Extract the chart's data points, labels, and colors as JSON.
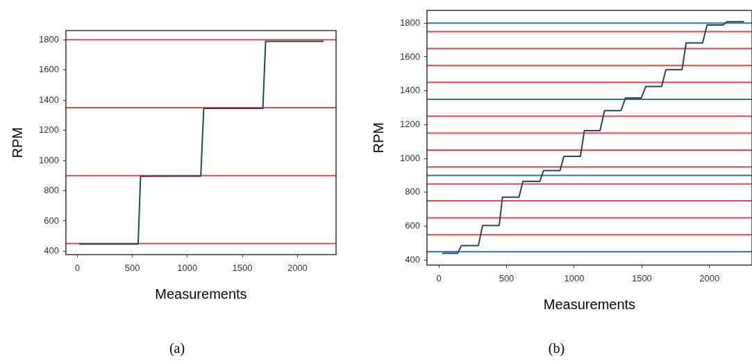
{
  "chart_data": [
    {
      "type": "line",
      "xlabel": "Measurements",
      "ylabel": "RPM",
      "xlim": [
        -103,
        2351
      ],
      "ylim": [
        377,
        1861
      ],
      "xticks": [
        0,
        500,
        1000,
        1500,
        2000
      ],
      "yticks": [
        400,
        600,
        800,
        1000,
        1200,
        1400,
        1600,
        1800
      ],
      "grid": false,
      "legend": false,
      "marker": "none",
      "line_style": "solid",
      "series": [
        {
          "color": "#1f4a55",
          "x": [
            17,
            553,
            575,
            1122,
            1149,
            1686,
            1711,
            2238
          ],
          "values": [
            447,
            447,
            895,
            897,
            1345,
            1345,
            1790,
            1790
          ]
        }
      ],
      "ref_lines": [
        {
          "axis": "y",
          "value": 450,
          "color": "#e8474f"
        },
        {
          "axis": "y",
          "value": 900,
          "color": "#e8474f"
        },
        {
          "axis": "y",
          "value": 1350,
          "color": "#e8474f"
        },
        {
          "axis": "y",
          "value": 1800,
          "color": "#e8474f"
        }
      ],
      "annotations": [
        "(a)"
      ]
    },
    {
      "type": "line",
      "xlabel": "Measurements",
      "ylabel": "RPM",
      "xlim": [
        -88,
        2314
      ],
      "ylim": [
        371,
        1875
      ],
      "xticks": [
        0,
        500,
        1000,
        1500,
        2000
      ],
      "yticks": [
        400,
        600,
        800,
        1000,
        1200,
        1400,
        1600,
        1800
      ],
      "grid": false,
      "legend": false,
      "marker": "none",
      "line_style": "solid",
      "series": [
        {
          "color": "#1f4a55",
          "x": [
            25,
            138,
            166,
            292,
            323,
            446,
            470,
            592,
            621,
            746,
            773,
            895,
            924,
            1046,
            1075,
            1191,
            1224,
            1346,
            1379,
            1496,
            1529,
            1646,
            1678,
            1797,
            1827,
            1949,
            1982,
            2100,
            2131,
            2255
          ],
          "values": [
            440,
            440,
            486,
            486,
            605,
            605,
            772,
            772,
            865,
            865,
            929,
            929,
            1013,
            1013,
            1165,
            1165,
            1283,
            1283,
            1358,
            1358,
            1426,
            1426,
            1525,
            1525,
            1683,
            1683,
            1789,
            1789,
            1808,
            1808
          ]
        }
      ],
      "ref_lines": [
        {
          "axis": "y",
          "value": 450,
          "color": "#2f6fb5"
        },
        {
          "axis": "y",
          "value": 550,
          "color": "#e8474f"
        },
        {
          "axis": "y",
          "value": 650,
          "color": "#e8474f"
        },
        {
          "axis": "y",
          "value": 750,
          "color": "#e8474f"
        },
        {
          "axis": "y",
          "value": 850,
          "color": "#e8474f"
        },
        {
          "axis": "y",
          "value": 900,
          "color": "#2f6fb5"
        },
        {
          "axis": "y",
          "value": 950,
          "color": "#e8474f"
        },
        {
          "axis": "y",
          "value": 1050,
          "color": "#e8474f"
        },
        {
          "axis": "y",
          "value": 1150,
          "color": "#e8474f"
        },
        {
          "axis": "y",
          "value": 1250,
          "color": "#e8474f"
        },
        {
          "axis": "y",
          "value": 1350,
          "color": "#2f6fb5"
        },
        {
          "axis": "y",
          "value": 1450,
          "color": "#e8474f"
        },
        {
          "axis": "y",
          "value": 1550,
          "color": "#e8474f"
        },
        {
          "axis": "y",
          "value": 1650,
          "color": "#e8474f"
        },
        {
          "axis": "y",
          "value": 1750,
          "color": "#e8474f"
        },
        {
          "axis": "y",
          "value": 1800,
          "color": "#2f6fb5"
        }
      ],
      "annotations": [
        "(b)"
      ]
    }
  ]
}
